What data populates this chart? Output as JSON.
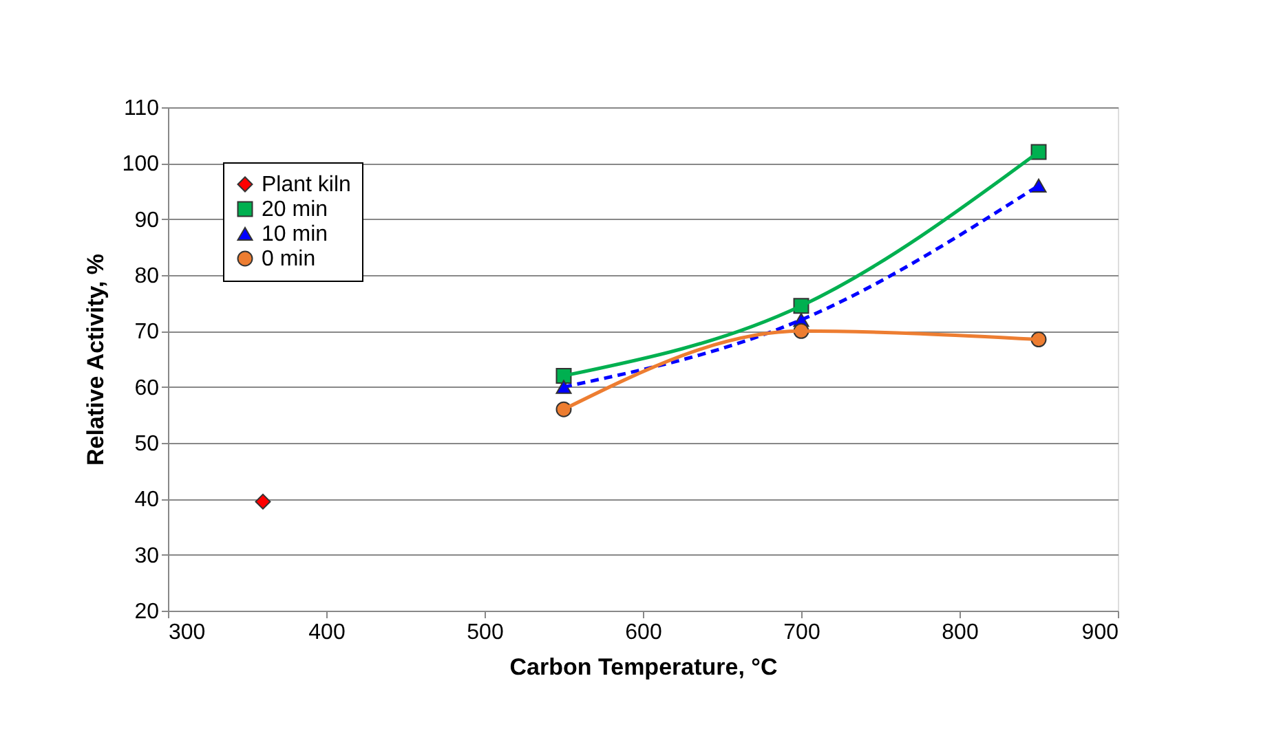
{
  "chart_data": {
    "type": "line",
    "xlabel": "Carbon Temperature, °C",
    "ylabel": "Relative Activity, %",
    "xlim": [
      300,
      900
    ],
    "xticks": [
      300,
      400,
      500,
      600,
      700,
      800,
      900
    ],
    "ylim": [
      20,
      110
    ],
    "yticks": [
      20,
      30,
      40,
      50,
      60,
      70,
      80,
      90,
      100,
      110
    ],
    "grid": "y",
    "legend": "top left",
    "series": [
      {
        "name": "Plant kiln",
        "type": "scatter",
        "marker": "diamond",
        "color": "#ff0000",
        "x": [
          360
        ],
        "values": [
          39.5
        ]
      },
      {
        "name": "20 min",
        "type": "line",
        "marker": "square",
        "line_style": "solid",
        "color": "#00b050",
        "x": [
          550,
          700,
          850
        ],
        "values": [
          62,
          74.5,
          102
        ]
      },
      {
        "name": "10 min",
        "type": "line",
        "marker": "triangle",
        "line_style": "dashed",
        "color": "#0000ff",
        "x": [
          550,
          700,
          850
        ],
        "values": [
          60,
          72,
          96
        ]
      },
      {
        "name": "0 min",
        "type": "line",
        "marker": "circle",
        "line_style": "solid",
        "color": "#ed7d31",
        "x": [
          550,
          700,
          850
        ],
        "values": [
          56,
          70,
          68.5
        ]
      }
    ]
  }
}
